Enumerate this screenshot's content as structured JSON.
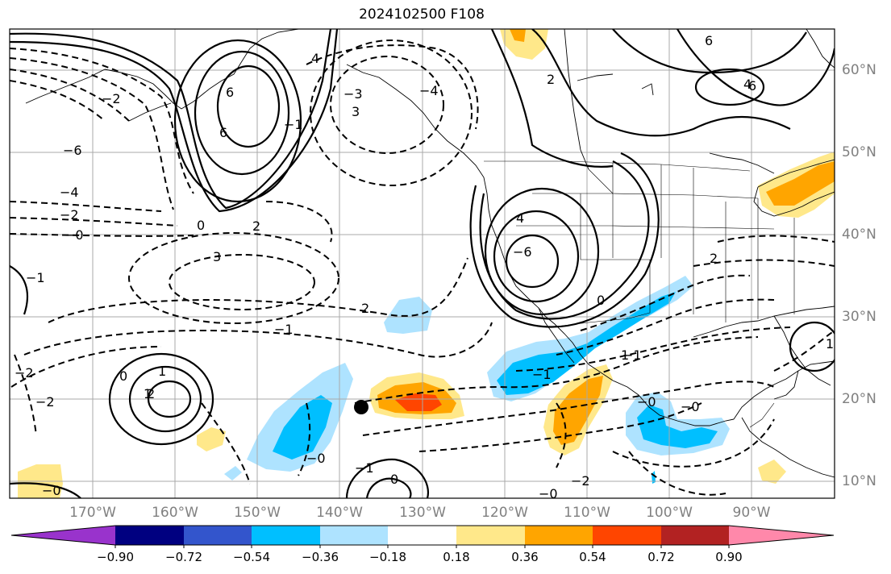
{
  "title": "2024102500 F108",
  "lon_labels": [
    "170°W",
    "160°W",
    "150°W",
    "140°W",
    "130°W",
    "120°W",
    "110°W",
    "100°W",
    "90°W"
  ],
  "lat_labels": [
    "60°N",
    "50°N",
    "40°N",
    "30°N",
    "20°N",
    "10°N"
  ],
  "colorbar": {
    "colors": [
      "#9933cc",
      "#000080",
      "#3355cc",
      "#00bfff",
      "#aee3ff",
      "#ffffff",
      "#ffe88a",
      "#ffa500",
      "#ff4500",
      "#b22222",
      "#ff88aa"
    ],
    "tick_labels": [
      "−0.90",
      "−0.72",
      "−0.54",
      "−0.36",
      "−0.18",
      "0.18",
      "0.36",
      "0.54",
      "0.72",
      "0.90"
    ]
  },
  "contour_labels": [
    "6",
    "−6",
    "−4",
    "−2",
    "−0",
    "0",
    "2",
    "3",
    "−1",
    "2",
    "−2",
    "6",
    "4",
    "−4",
    "−3",
    "3",
    "2",
    "−1",
    "1",
    "−2",
    "−2",
    "6",
    "2",
    "1",
    "0",
    "−0",
    "−0",
    "1",
    "4",
    "−1",
    "−0",
    "−1",
    "−0",
    "0",
    "4",
    "−6",
    "6",
    "−1",
    "−2",
    "−0",
    "1",
    "2",
    "−1",
    "0"
  ],
  "marker": "storm-position-marker"
}
